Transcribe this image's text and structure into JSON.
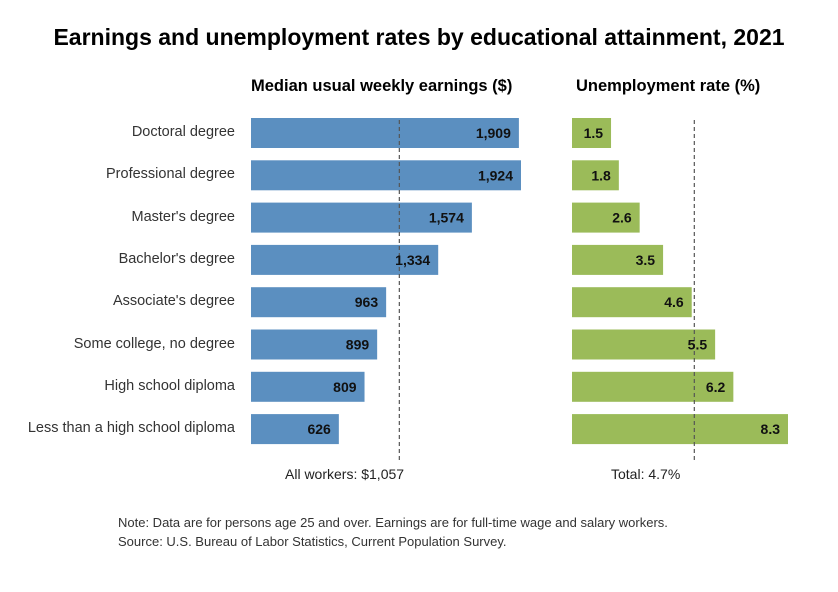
{
  "chart_data": [
    {
      "type": "bar",
      "orientation": "horizontal",
      "title": "Median usual weekly earnings ($)",
      "categories": [
        "Doctoral degree",
        "Professional degree",
        "Master's degree",
        "Bachelor's degree",
        "Associate's degree",
        "Some college, no degree",
        "High school diploma",
        "Less than a high school diploma"
      ],
      "values": [
        1909,
        1924,
        1574,
        1334,
        963,
        899,
        809,
        626
      ],
      "value_labels": [
        "1,909",
        "1,924",
        "1,574",
        "1,334",
        "963",
        "899",
        "809",
        "626"
      ],
      "reference_value": 1057,
      "reference_label": "All workers: $1,057",
      "xlim": [
        0,
        1924
      ],
      "color": "#5b8fc0",
      "grid": false
    },
    {
      "type": "bar",
      "orientation": "horizontal",
      "title": "Unemployment rate (%)",
      "categories": [
        "Doctoral degree",
        "Professional degree",
        "Master's degree",
        "Bachelor's degree",
        "Associate's degree",
        "Some college, no degree",
        "High school diploma",
        "Less than a high school diploma"
      ],
      "values": [
        1.5,
        1.8,
        2.6,
        3.5,
        4.6,
        5.5,
        6.2,
        8.3
      ],
      "value_labels": [
        "1.5",
        "1.8",
        "2.6",
        "3.5",
        "4.6",
        "5.5",
        "6.2",
        "8.3"
      ],
      "reference_value": 4.7,
      "reference_label": "Total: 4.7%",
      "xlim": [
        0,
        8.3
      ],
      "color": "#9bbb59",
      "grid": false
    }
  ],
  "title": "Earnings and unemployment rates by educational attainment, 2021",
  "notes": [
    "Note: Data are for persons age 25 and over. Earnings are for full-time wage and salary workers.",
    "Source: U.S. Bureau of Labor Statistics, Current Population Survey."
  ]
}
